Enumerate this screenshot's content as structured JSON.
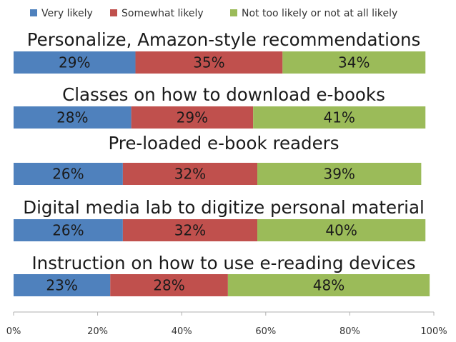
{
  "chart_data": {
    "type": "bar",
    "orientation": "horizontal",
    "stacked": true,
    "categories": [
      "Personalize, Amazon-style recommendations",
      "Classes on how to download e-books",
      "Pre-loaded e-book readers",
      "Digital media lab to digitize personal material",
      "Instruction on how to use e-reading devices"
    ],
    "series": [
      {
        "name": "Very likely",
        "color": "#4f81bd",
        "values": [
          29,
          28,
          26,
          26,
          23
        ]
      },
      {
        "name": "Somewhat likely",
        "color": "#c0504d",
        "values": [
          35,
          29,
          32,
          32,
          28
        ]
      },
      {
        "name": "Not too likely or not at all likely",
        "color": "#9bbb59",
        "values": [
          34,
          41,
          39,
          40,
          48
        ]
      }
    ],
    "value_labels": [
      [
        "29%",
        "35%",
        "34%"
      ],
      [
        "28%",
        "29%",
        "41%"
      ],
      [
        "26%",
        "32%",
        "39%"
      ],
      [
        "26%",
        "32%",
        "40%"
      ],
      [
        "23%",
        "28%",
        "48%"
      ]
    ],
    "xlim": [
      0,
      100
    ],
    "x_ticks": [
      "0%",
      "20%",
      "40%",
      "60%",
      "80%",
      "100%"
    ],
    "legend_position": "top",
    "grid": false,
    "title": "",
    "xlabel": "",
    "ylabel": ""
  }
}
